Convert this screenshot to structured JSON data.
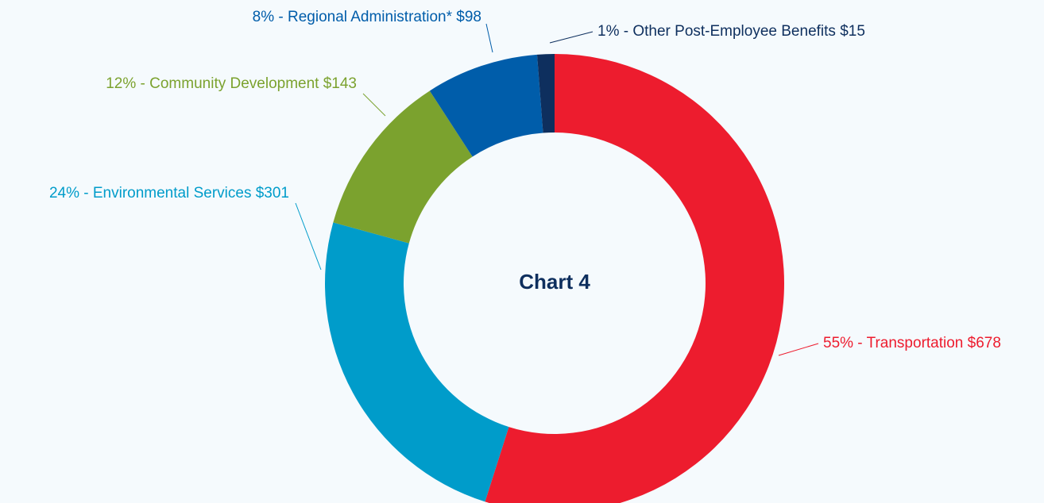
{
  "chart_data": {
    "type": "donut",
    "title": "Chart 4",
    "values": [
      678,
      301,
      143,
      98,
      15
    ],
    "value_labels": [
      "55% - Transportation $678",
      "24% - Environmental Services $301",
      "12% - Community Development $143",
      "8% - Regional Administration* $98",
      "1% - Other Post-Employee Benefits $15"
    ],
    "colors": [
      "#ed1c2e",
      "#009cca",
      "#7ba22e",
      "#005daa",
      "#0e2f5e"
    ]
  }
}
